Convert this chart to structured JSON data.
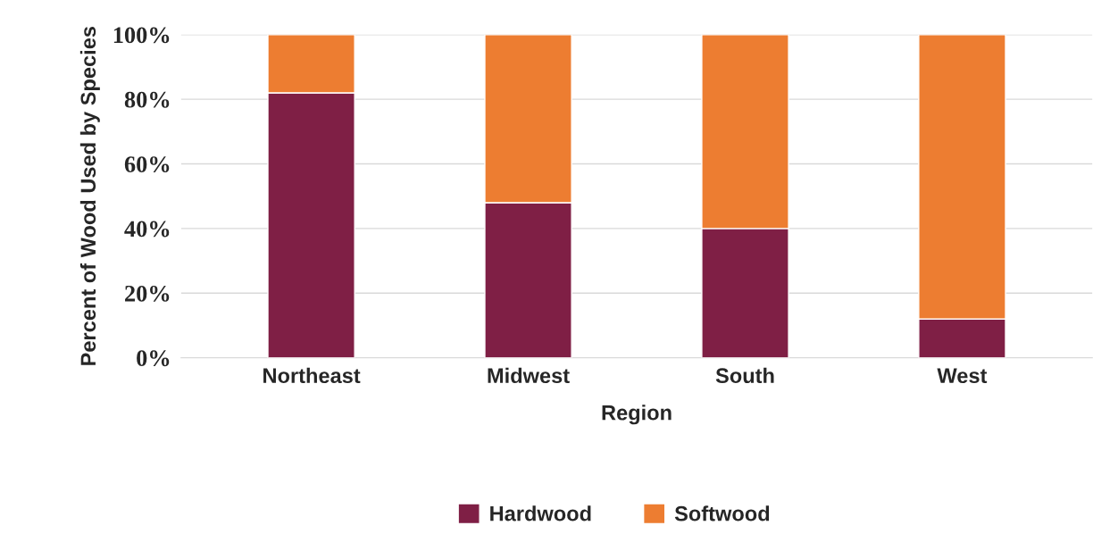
{
  "chart_data": {
    "type": "bar",
    "stacked": true,
    "xlabel": "Region",
    "ylabel": "Percent of Wood Used by Species",
    "categories": [
      "Northeast",
      "Midwest",
      "South",
      "West"
    ],
    "series": [
      {
        "name": "Hardwood",
        "color": "#7f1f45",
        "values": [
          82,
          48,
          40,
          12
        ]
      },
      {
        "name": "Softwood",
        "color": "#ed7d31",
        "values": [
          18,
          52,
          60,
          88
        ]
      }
    ],
    "ylim": [
      0,
      100
    ],
    "yticks": [
      {
        "value": 0,
        "label": "0%"
      },
      {
        "value": 20,
        "label": "20%"
      },
      {
        "value": 40,
        "label": "40%"
      },
      {
        "value": 60,
        "label": "60%"
      },
      {
        "value": 80,
        "label": "80%"
      },
      {
        "value": 100,
        "label": "100%"
      }
    ],
    "grid": "y",
    "legend": "bottom"
  }
}
